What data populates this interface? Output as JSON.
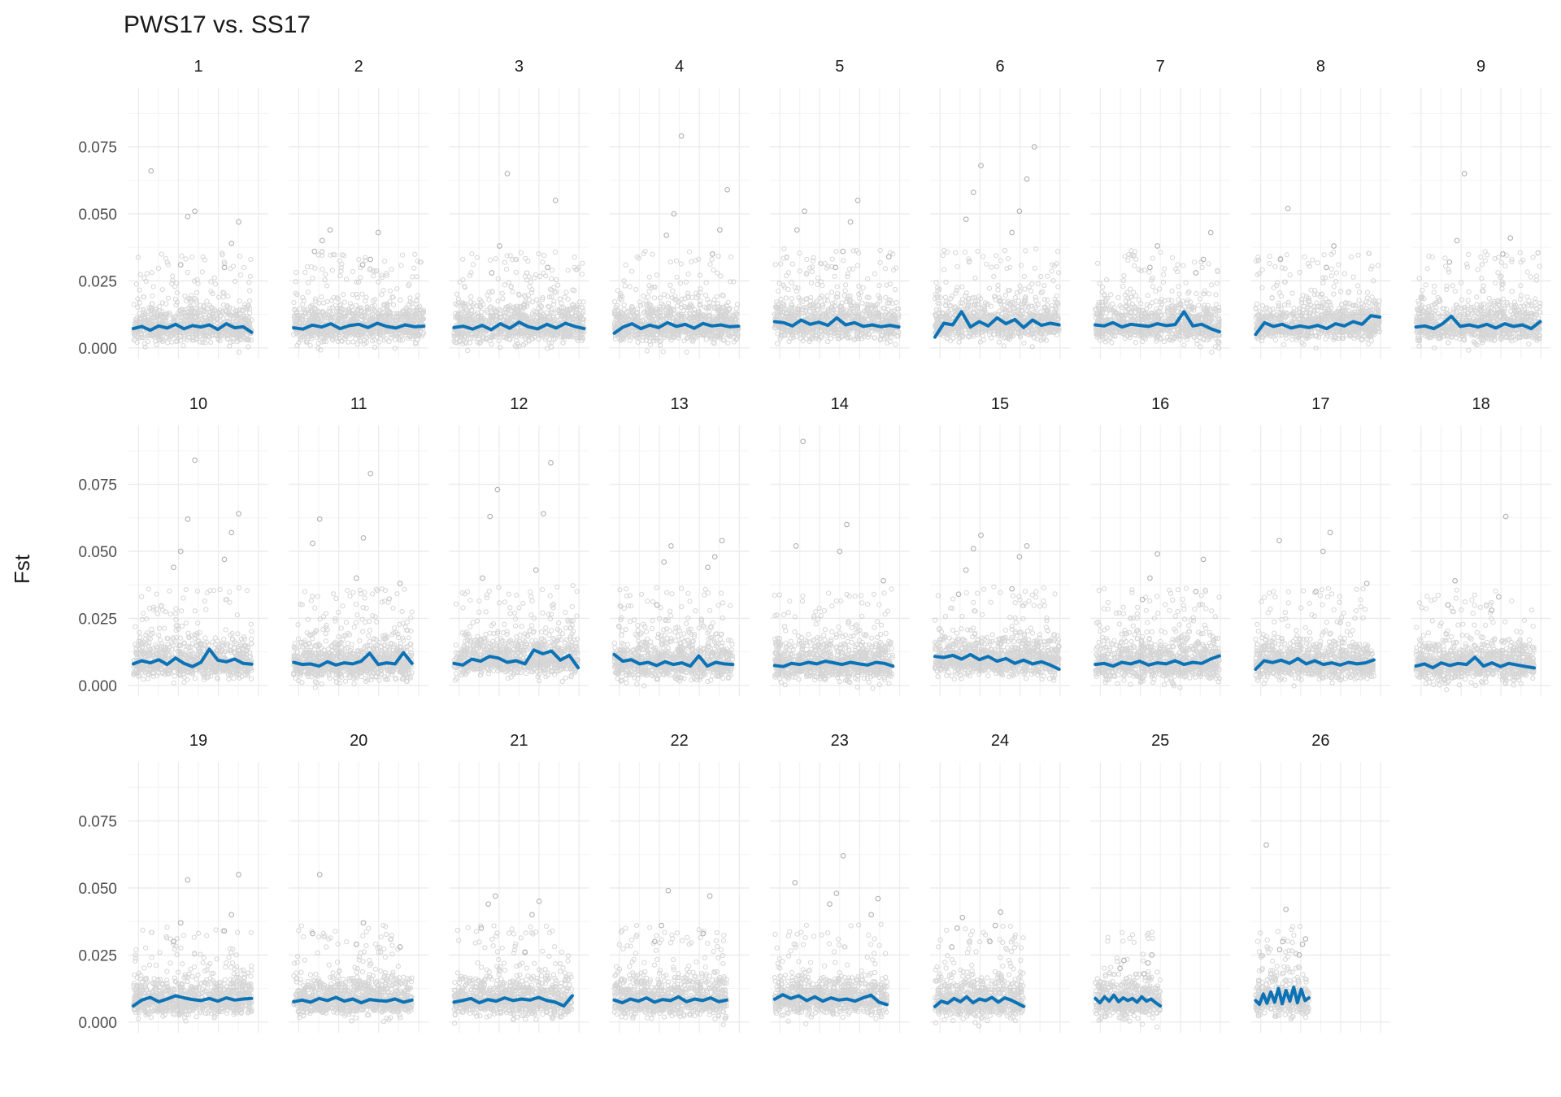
{
  "chart_data": {
    "type": "scatter",
    "title": "PWS17 vs.  SS17",
    "ylabel": "Fst",
    "xlabel": "",
    "ylim": [
      -0.004,
      0.097
    ],
    "y_ticks": [
      0.0,
      0.025,
      0.05,
      0.075
    ],
    "y_tick_labels": [
      "0.000",
      "0.025",
      "0.050",
      "0.075"
    ],
    "grid": true,
    "layout": "facet-wrap 9 columns",
    "colors": {
      "points": "#b5b5b5",
      "smooth": "#0b72b5",
      "grid": "#ebebeb",
      "text": "#4d4d4d"
    },
    "facets": [
      {
        "label": "1",
        "length": 1.0,
        "mean": 0.0077,
        "outliers": [
          0.066,
          0.051,
          0.047,
          0.049,
          0.039,
          0.031,
          0.03
        ],
        "smooth": [
          0.0072,
          0.008,
          0.0066,
          0.0082,
          0.0074,
          0.0088,
          0.0071,
          0.0083,
          0.0078,
          0.0086,
          0.0069,
          0.009,
          0.0075,
          0.0079,
          0.0058
        ]
      },
      {
        "label": "2",
        "length": 1.1,
        "mean": 0.008,
        "outliers": [
          0.044,
          0.043,
          0.04,
          0.033,
          0.036,
          0.031
        ],
        "smooth": [
          0.0075,
          0.007,
          0.0085,
          0.0078,
          0.009,
          0.0072,
          0.0083,
          0.0088,
          0.0076,
          0.0092,
          0.008,
          0.0074,
          0.0086,
          0.0079,
          0.0081
        ]
      },
      {
        "label": "3",
        "length": 1.1,
        "mean": 0.0078,
        "outliers": [
          0.065,
          0.055,
          0.038,
          0.03,
          0.028
        ],
        "smooth": [
          0.0076,
          0.0081,
          0.007,
          0.0084,
          0.0068,
          0.009,
          0.0073,
          0.0096,
          0.0079,
          0.0071,
          0.0088,
          0.0074,
          0.0092,
          0.008,
          0.0072
        ]
      },
      {
        "label": "4",
        "length": 1.05,
        "mean": 0.0082,
        "outliers": [
          0.079,
          0.059,
          0.05,
          0.044,
          0.042,
          0.035
        ],
        "smooth": [
          0.0055,
          0.0078,
          0.009,
          0.0072,
          0.0085,
          0.0076,
          0.0094,
          0.008,
          0.0088,
          0.0073,
          0.0091,
          0.0082,
          0.0086,
          0.0079,
          0.0081
        ]
      },
      {
        "label": "5",
        "length": 1.05,
        "mean": 0.009,
        "outliers": [
          0.055,
          0.051,
          0.047,
          0.044,
          0.036,
          0.034,
          0.03
        ],
        "smooth": [
          0.0098,
          0.0094,
          0.0082,
          0.0104,
          0.0088,
          0.0096,
          0.0084,
          0.0112,
          0.0086,
          0.0094,
          0.008,
          0.0086,
          0.0079,
          0.0084,
          0.0078
        ]
      },
      {
        "label": "6",
        "length": 1.05,
        "mean": 0.009,
        "outliers": [
          0.075,
          0.068,
          0.063,
          0.058,
          0.051,
          0.048,
          0.043
        ],
        "smooth": [
          0.004,
          0.0092,
          0.0086,
          0.0135,
          0.0078,
          0.0098,
          0.0082,
          0.0112,
          0.009,
          0.0106,
          0.0076,
          0.0104,
          0.0084,
          0.0092,
          0.0086
        ]
      },
      {
        "label": "7",
        "length": 1.05,
        "mean": 0.0085,
        "outliers": [
          0.043,
          0.038,
          0.033,
          0.03,
          0.028
        ],
        "smooth": [
          0.0086,
          0.0082,
          0.0094,
          0.0078,
          0.0088,
          0.0084,
          0.008,
          0.009,
          0.0083,
          0.0087,
          0.0135,
          0.0082,
          0.0088,
          0.0072,
          0.006
        ]
      },
      {
        "label": "8",
        "length": 1.05,
        "mean": 0.0085,
        "outliers": [
          0.052,
          0.038,
          0.033,
          0.03
        ],
        "smooth": [
          0.005,
          0.0094,
          0.008,
          0.0088,
          0.0074,
          0.0082,
          0.0076,
          0.0084,
          0.0072,
          0.009,
          0.0082,
          0.0098,
          0.0088,
          0.012,
          0.0115
        ]
      },
      {
        "label": "9",
        "length": 1.05,
        "mean": 0.0082,
        "outliers": [
          0.065,
          0.041,
          0.04,
          0.035,
          0.032
        ],
        "smooth": [
          0.0078,
          0.0082,
          0.0072,
          0.009,
          0.0118,
          0.008,
          0.0086,
          0.0078,
          0.0088,
          0.0074,
          0.009,
          0.008,
          0.0086,
          0.0072,
          0.0098
        ]
      },
      {
        "label": "10",
        "length": 1.0,
        "mean": 0.0085,
        "outliers": [
          0.084,
          0.064,
          0.062,
          0.057,
          0.05,
          0.047,
          0.044
        ],
        "smooth": [
          0.008,
          0.0092,
          0.0084,
          0.0096,
          0.0078,
          0.0102,
          0.0082,
          0.007,
          0.0086,
          0.0135,
          0.0094,
          0.0088,
          0.0098,
          0.0082,
          0.0079
        ]
      },
      {
        "label": "11",
        "length": 1.0,
        "mean": 0.008,
        "outliers": [
          0.079,
          0.062,
          0.055,
          0.053,
          0.04,
          0.038
        ],
        "smooth": [
          0.0086,
          0.0078,
          0.008,
          0.0072,
          0.0088,
          0.0076,
          0.0084,
          0.008,
          0.009,
          0.012,
          0.0078,
          0.0084,
          0.008,
          0.0122,
          0.0082
        ]
      },
      {
        "label": "12",
        "length": 1.05,
        "mean": 0.0095,
        "outliers": [
          0.083,
          0.073,
          0.064,
          0.063,
          0.043,
          0.04
        ],
        "smooth": [
          0.0082,
          0.0076,
          0.0098,
          0.009,
          0.0108,
          0.0102,
          0.0086,
          0.0092,
          0.008,
          0.0132,
          0.0118,
          0.0128,
          0.0094,
          0.0112,
          0.0066
        ]
      },
      {
        "label": "13",
        "length": 1.0,
        "mean": 0.0085,
        "outliers": [
          0.054,
          0.052,
          0.048,
          0.046,
          0.044,
          0.03
        ],
        "smooth": [
          0.0115,
          0.009,
          0.0096,
          0.008,
          0.0086,
          0.0074,
          0.0088,
          0.0078,
          0.0084,
          0.0072,
          0.011,
          0.0072,
          0.0086,
          0.008,
          0.0078
        ]
      },
      {
        "label": "14",
        "length": 1.0,
        "mean": 0.008,
        "outliers": [
          0.091,
          0.06,
          0.052,
          0.05,
          0.039
        ],
        "smooth": [
          0.0074,
          0.007,
          0.0082,
          0.0078,
          0.0086,
          0.008,
          0.009,
          0.0084,
          0.0078,
          0.0086,
          0.008,
          0.0076,
          0.0086,
          0.0082,
          0.0072
        ]
      },
      {
        "label": "15",
        "length": 1.05,
        "mean": 0.0095,
        "outliers": [
          0.056,
          0.052,
          0.051,
          0.048,
          0.043,
          0.036,
          0.034
        ],
        "smooth": [
          0.0108,
          0.0104,
          0.0112,
          0.0098,
          0.0115,
          0.0096,
          0.0108,
          0.009,
          0.01,
          0.0082,
          0.0094,
          0.008,
          0.0088,
          0.0076,
          0.006
        ]
      },
      {
        "label": "16",
        "length": 1.05,
        "mean": 0.0082,
        "outliers": [
          0.049,
          0.047,
          0.04,
          0.035,
          0.032
        ],
        "smooth": [
          0.0078,
          0.0082,
          0.0072,
          0.0086,
          0.008,
          0.009,
          0.0076,
          0.0084,
          0.008,
          0.0092,
          0.0078,
          0.0086,
          0.0082,
          0.0098,
          0.011
        ]
      },
      {
        "label": "17",
        "length": 1.0,
        "mean": 0.0082,
        "outliers": [
          0.057,
          0.054,
          0.05,
          0.038,
          0.035
        ],
        "smooth": [
          0.006,
          0.0092,
          0.0085,
          0.0094,
          0.0082,
          0.01,
          0.008,
          0.0092,
          0.0078,
          0.0084,
          0.0076,
          0.0086,
          0.008,
          0.0084,
          0.0095
        ]
      },
      {
        "label": "18",
        "length": 1.0,
        "mean": 0.0078,
        "outliers": [
          0.063,
          0.039,
          0.033,
          0.03,
          0.028
        ],
        "smooth": [
          0.0072,
          0.008,
          0.0066,
          0.0084,
          0.0074,
          0.0082,
          0.0078,
          0.0105,
          0.0072,
          0.0084,
          0.007,
          0.0082,
          0.0076,
          0.007,
          0.0065
        ]
      },
      {
        "label": "19",
        "length": 1.0,
        "mean": 0.008,
        "outliers": [
          0.055,
          0.053,
          0.04,
          0.037,
          0.034,
          0.03
        ],
        "smooth": [
          0.006,
          0.0082,
          0.0092,
          0.0076,
          0.0086,
          0.0098,
          0.009,
          0.0084,
          0.008,
          0.0088,
          0.0078,
          0.009,
          0.0082,
          0.0086,
          0.0088
        ]
      },
      {
        "label": "20",
        "length": 1.0,
        "mean": 0.008,
        "outliers": [
          0.055,
          0.037,
          0.033,
          0.029,
          0.028
        ],
        "smooth": [
          0.0076,
          0.0082,
          0.0074,
          0.0088,
          0.008,
          0.0092,
          0.0078,
          0.0086,
          0.0072,
          0.0084,
          0.008,
          0.0078,
          0.0086,
          0.0074,
          0.0082
        ]
      },
      {
        "label": "21",
        "length": 1.0,
        "mean": 0.008,
        "outliers": [
          0.047,
          0.045,
          0.044,
          0.04,
          0.035,
          0.026
        ],
        "smooth": [
          0.0074,
          0.008,
          0.0088,
          0.0072,
          0.0084,
          0.0078,
          0.009,
          0.008,
          0.0086,
          0.0082,
          0.0092,
          0.008,
          0.0074,
          0.006,
          0.0098
        ]
      },
      {
        "label": "22",
        "length": 0.95,
        "mean": 0.008,
        "outliers": [
          0.049,
          0.047,
          0.036,
          0.033,
          0.03
        ],
        "smooth": [
          0.0082,
          0.0072,
          0.0086,
          0.0078,
          0.009,
          0.0074,
          0.0084,
          0.008,
          0.0094,
          0.0076,
          0.0086,
          0.008,
          0.009,
          0.0076,
          0.0082
        ]
      },
      {
        "label": "23",
        "length": 0.95,
        "mean": 0.0085,
        "outliers": [
          0.062,
          0.052,
          0.048,
          0.046,
          0.044,
          0.04
        ],
        "smooth": [
          0.0085,
          0.0102,
          0.0088,
          0.0098,
          0.008,
          0.0094,
          0.0078,
          0.009,
          0.0082,
          0.0086,
          0.0078,
          0.009,
          0.01,
          0.0074,
          0.0065
        ]
      },
      {
        "label": "24",
        "length": 0.75,
        "mean": 0.0078,
        "outliers": [
          0.041,
          0.039,
          0.036,
          0.035,
          0.03,
          0.028
        ],
        "smooth": [
          0.0058,
          0.0078,
          0.007,
          0.0088,
          0.0076,
          0.0094,
          0.0072,
          0.0086,
          0.008,
          0.0092,
          0.0074,
          0.009,
          0.0082,
          0.007,
          0.0058
        ]
      },
      {
        "label": "25",
        "length": 0.55,
        "mean": 0.008,
        "outliers": [
          0.025,
          0.023,
          0.022,
          0.02,
          0.018
        ],
        "smooth": [
          0.0088,
          0.0072,
          0.0094,
          0.0078,
          0.01,
          0.0076,
          0.009,
          0.008,
          0.0088,
          0.0074,
          0.0094,
          0.0078,
          0.0086,
          0.0072,
          0.006
        ]
      },
      {
        "label": "26",
        "length": 0.45,
        "mean": 0.0085,
        "outliers": [
          0.066,
          0.042,
          0.031,
          0.03,
          0.029,
          0.027,
          0.025
        ],
        "smooth": [
          0.008,
          0.0066,
          0.0105,
          0.007,
          0.0112,
          0.0074,
          0.0125,
          0.0068,
          0.0118,
          0.0078,
          0.013,
          0.0072,
          0.0122,
          0.008,
          0.009
        ]
      }
    ]
  }
}
